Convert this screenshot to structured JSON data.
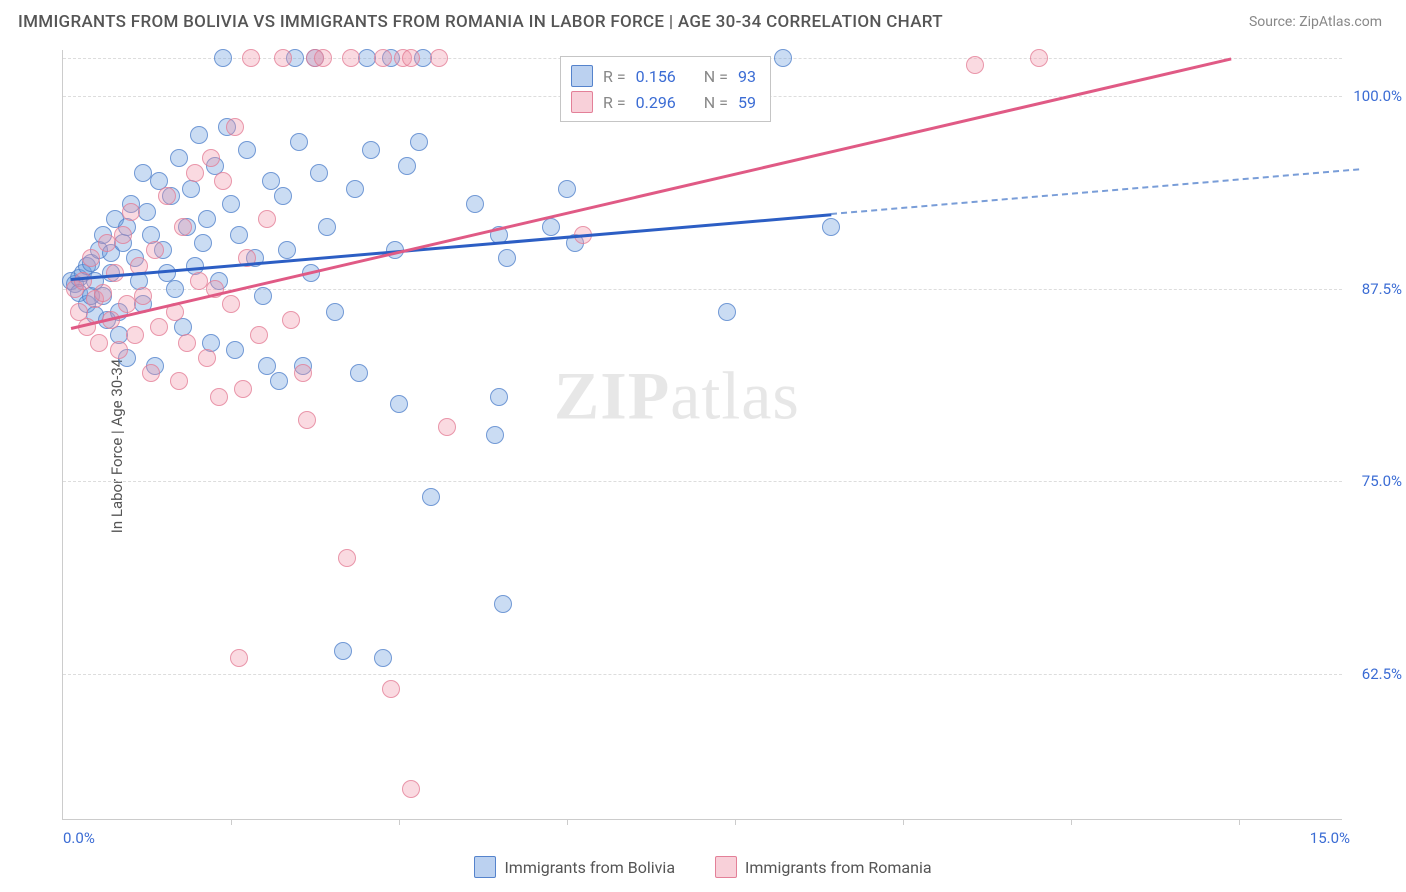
{
  "title": "IMMIGRANTS FROM BOLIVIA VS IMMIGRANTS FROM ROMANIA IN LABOR FORCE | AGE 30-34 CORRELATION CHART",
  "source_label": "Source: ",
  "source_value": "ZipAtlas.com",
  "yaxis_title": "In Labor Force | Age 30-34",
  "watermark_a": "ZIP",
  "watermark_b": "atlas",
  "chart": {
    "type": "scatter",
    "background_color": "#ffffff",
    "grid_color": "#dddddd",
    "axis_color": "#cccccc",
    "xlim": [
      0,
      16
    ],
    "ylim": [
      53,
      103
    ],
    "x_tick_marks": [
      2.1,
      4.2,
      6.3,
      8.4,
      10.5,
      12.6,
      14.7
    ],
    "x_left_label": "0.0%",
    "x_right_label": "15.0%",
    "y_gridlines": [
      62.5,
      75.0,
      87.5,
      100.0,
      102.5
    ],
    "y_tick_labels": [
      "62.5%",
      "75.0%",
      "87.5%",
      "100.0%"
    ],
    "point_radius": 9,
    "series": [
      {
        "name": "Immigrants from Bolivia",
        "color_fill": "rgba(104,154,222,0.35)",
        "color_stroke": "rgba(74,122,200,0.7)",
        "class": "blue",
        "R": "0.156",
        "N": "93",
        "trend": {
          "x1": 0.1,
          "y1": 88.2,
          "x2": 9.6,
          "y2": 92.4,
          "extend_x": 16.2,
          "extend_y": 95.3,
          "color": "#2c5ec4"
        },
        "points": [
          [
            0.1,
            88.0
          ],
          [
            0.15,
            87.8
          ],
          [
            0.2,
            88.2
          ],
          [
            0.2,
            87.2
          ],
          [
            0.25,
            88.5
          ],
          [
            0.3,
            86.5
          ],
          [
            0.3,
            89.0
          ],
          [
            0.35,
            87.0
          ],
          [
            0.35,
            89.2
          ],
          [
            0.4,
            88.0
          ],
          [
            0.4,
            85.8
          ],
          [
            0.45,
            90.0
          ],
          [
            0.5,
            87.0
          ],
          [
            0.5,
            91.0
          ],
          [
            0.55,
            85.5
          ],
          [
            0.6,
            88.5
          ],
          [
            0.6,
            89.8
          ],
          [
            0.65,
            92.0
          ],
          [
            0.7,
            86.0
          ],
          [
            0.7,
            84.5
          ],
          [
            0.75,
            90.5
          ],
          [
            0.8,
            91.5
          ],
          [
            0.8,
            83.0
          ],
          [
            0.85,
            93.0
          ],
          [
            0.9,
            89.5
          ],
          [
            0.95,
            88.0
          ],
          [
            1.0,
            95.0
          ],
          [
            1.0,
            86.5
          ],
          [
            1.05,
            92.5
          ],
          [
            1.1,
            91.0
          ],
          [
            1.15,
            82.5
          ],
          [
            1.2,
            94.5
          ],
          [
            1.25,
            90.0
          ],
          [
            1.3,
            88.5
          ],
          [
            1.35,
            93.5
          ],
          [
            1.4,
            87.5
          ],
          [
            1.45,
            96.0
          ],
          [
            1.5,
            85.0
          ],
          [
            1.55,
            91.5
          ],
          [
            1.6,
            94.0
          ],
          [
            1.65,
            89.0
          ],
          [
            1.7,
            97.5
          ],
          [
            1.75,
            90.5
          ],
          [
            1.8,
            92.0
          ],
          [
            1.85,
            84.0
          ],
          [
            1.9,
            95.5
          ],
          [
            1.95,
            88.0
          ],
          [
            2.0,
            102.5
          ],
          [
            2.05,
            98.0
          ],
          [
            2.1,
            93.0
          ],
          [
            2.15,
            83.5
          ],
          [
            2.2,
            91.0
          ],
          [
            2.3,
            96.5
          ],
          [
            2.4,
            89.5
          ],
          [
            2.5,
            87.0
          ],
          [
            2.55,
            82.5
          ],
          [
            2.6,
            94.5
          ],
          [
            2.7,
            81.5
          ],
          [
            2.75,
            93.5
          ],
          [
            2.8,
            90.0
          ],
          [
            2.9,
            102.5
          ],
          [
            2.95,
            97.0
          ],
          [
            3.0,
            82.5
          ],
          [
            3.1,
            88.5
          ],
          [
            3.2,
            95.0
          ],
          [
            3.3,
            91.5
          ],
          [
            3.4,
            86.0
          ],
          [
            3.5,
            64.0
          ],
          [
            3.65,
            94.0
          ],
          [
            3.7,
            82.0
          ],
          [
            3.8,
            102.5
          ],
          [
            3.85,
            96.5
          ],
          [
            4.0,
            63.5
          ],
          [
            4.1,
            102.5
          ],
          [
            4.15,
            90.0
          ],
          [
            4.2,
            80.0
          ],
          [
            4.3,
            95.5
          ],
          [
            4.45,
            97.0
          ],
          [
            4.5,
            102.5
          ],
          [
            4.6,
            74.0
          ],
          [
            5.15,
            93.0
          ],
          [
            5.4,
            78.0
          ],
          [
            5.45,
            91.0
          ],
          [
            5.45,
            80.5
          ],
          [
            5.5,
            67.0
          ],
          [
            5.55,
            89.5
          ],
          [
            6.1,
            91.5
          ],
          [
            6.3,
            94.0
          ],
          [
            6.4,
            90.5
          ],
          [
            8.3,
            86.0
          ],
          [
            9.6,
            91.5
          ],
          [
            9.0,
            102.5
          ],
          [
            3.15,
            102.5
          ]
        ]
      },
      {
        "name": "Immigrants from Romania",
        "color_fill": "rgba(240,150,170,0.35)",
        "color_stroke": "rgba(225,120,145,0.9)",
        "class": "pink",
        "R": "0.296",
        "N": "59",
        "trend": {
          "x1": 0.1,
          "y1": 85.0,
          "x2": 14.6,
          "y2": 102.5,
          "color": "#e05a85"
        },
        "points": [
          [
            0.15,
            87.5
          ],
          [
            0.2,
            86.0
          ],
          [
            0.25,
            88.0
          ],
          [
            0.3,
            85.0
          ],
          [
            0.35,
            89.5
          ],
          [
            0.4,
            86.8
          ],
          [
            0.45,
            84.0
          ],
          [
            0.5,
            87.2
          ],
          [
            0.55,
            90.5
          ],
          [
            0.6,
            85.5
          ],
          [
            0.65,
            88.5
          ],
          [
            0.7,
            83.5
          ],
          [
            0.75,
            91.0
          ],
          [
            0.8,
            86.5
          ],
          [
            0.85,
            92.5
          ],
          [
            0.9,
            84.5
          ],
          [
            0.95,
            89.0
          ],
          [
            1.0,
            87.0
          ],
          [
            1.1,
            82.0
          ],
          [
            1.15,
            90.0
          ],
          [
            1.2,
            85.0
          ],
          [
            1.3,
            93.5
          ],
          [
            1.4,
            86.0
          ],
          [
            1.45,
            81.5
          ],
          [
            1.5,
            91.5
          ],
          [
            1.55,
            84.0
          ],
          [
            1.65,
            95.0
          ],
          [
            1.7,
            88.0
          ],
          [
            1.8,
            83.0
          ],
          [
            1.85,
            96.0
          ],
          [
            1.9,
            87.5
          ],
          [
            1.95,
            80.5
          ],
          [
            2.0,
            94.5
          ],
          [
            2.1,
            86.5
          ],
          [
            2.15,
            98.0
          ],
          [
            2.2,
            63.5
          ],
          [
            2.25,
            81.0
          ],
          [
            2.3,
            89.5
          ],
          [
            2.35,
            102.5
          ],
          [
            2.45,
            84.5
          ],
          [
            2.55,
            92.0
          ],
          [
            2.75,
            102.5
          ],
          [
            2.85,
            85.5
          ],
          [
            3.0,
            82.0
          ],
          [
            3.05,
            79.0
          ],
          [
            3.15,
            102.5
          ],
          [
            3.25,
            102.5
          ],
          [
            3.55,
            70.0
          ],
          [
            3.6,
            102.5
          ],
          [
            4.0,
            102.5
          ],
          [
            4.1,
            61.5
          ],
          [
            4.25,
            102.5
          ],
          [
            4.35,
            55.0
          ],
          [
            4.35,
            102.5
          ],
          [
            4.7,
            102.5
          ],
          [
            4.8,
            78.5
          ],
          [
            6.5,
            91.0
          ],
          [
            11.4,
            102.0
          ],
          [
            12.2,
            102.5
          ]
        ]
      }
    ]
  },
  "legend_top": {
    "R_label": "R =",
    "N_label": "N ="
  },
  "bottom_legend": [
    {
      "class": "blue",
      "label": "Immigrants from Bolivia"
    },
    {
      "class": "pink",
      "label": "Immigrants from Romania"
    }
  ]
}
